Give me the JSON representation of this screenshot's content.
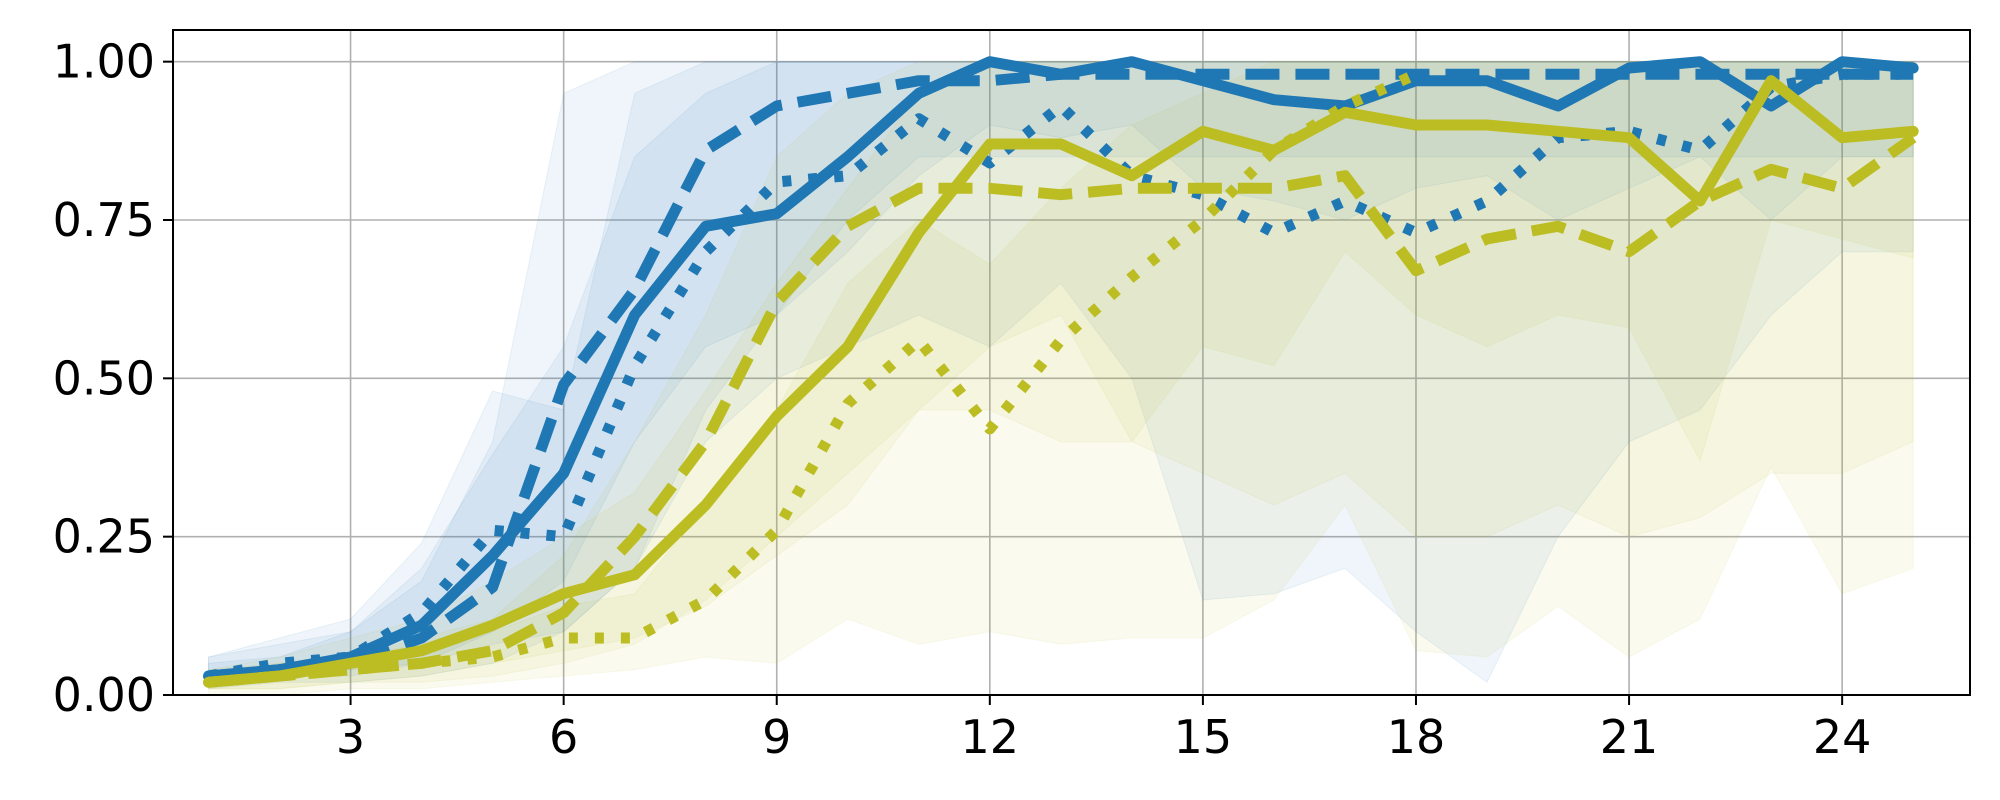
{
  "chart_data": {
    "type": "line",
    "title": "",
    "xlabel": "",
    "ylabel": "",
    "xlim": [
      0.5,
      25.8
    ],
    "ylim": [
      0,
      1.05
    ],
    "grid": true,
    "legend": "none",
    "x_ticks": [
      3,
      6,
      9,
      12,
      15,
      18,
      21,
      24
    ],
    "y_ticks": [
      0.0,
      0.25,
      0.5,
      0.75,
      1.0
    ],
    "x_tick_labels": [
      "3",
      "6",
      "9",
      "12",
      "15",
      "18",
      "21",
      "24"
    ],
    "y_tick_labels": [
      "0.00",
      "0.25",
      "0.50",
      "0.75",
      "1.00"
    ],
    "x": [
      1,
      2,
      3,
      4,
      5,
      6,
      7,
      8,
      9,
      10,
      11,
      12,
      13,
      14,
      15,
      16,
      17,
      18,
      19,
      20,
      21,
      22,
      23,
      24,
      25
    ],
    "colors": {
      "blue": "#1f77b4",
      "olive": "#bcbd22"
    },
    "series": [
      {
        "color": "#1f77b4",
        "style": "solid",
        "values": [
          0.03,
          0.04,
          0.06,
          0.11,
          0.22,
          0.35,
          0.6,
          0.74,
          0.76,
          0.85,
          0.95,
          1.0,
          0.98,
          1.0,
          0.97,
          0.94,
          0.93,
          0.97,
          0.97,
          0.93,
          0.99,
          1.0,
          0.93,
          1.0,
          0.99
        ],
        "band_lower": [
          0.02,
          0.03,
          0.04,
          0.05,
          0.1,
          0.18,
          0.4,
          0.55,
          0.6,
          0.7,
          0.82,
          0.9,
          0.88,
          0.9,
          0.8,
          0.78,
          0.75,
          0.8,
          0.82,
          0.75,
          0.8,
          0.85,
          0.75,
          0.85,
          0.85
        ],
        "band_upper": [
          0.05,
          0.06,
          0.1,
          0.2,
          0.38,
          0.55,
          0.85,
          0.95,
          1.0,
          1.0,
          1.0,
          1.0,
          1.0,
          1.0,
          1.0,
          1.0,
          1.0,
          1.0,
          1.0,
          1.0,
          1.0,
          1.0,
          1.0,
          1.0,
          1.0
        ]
      },
      {
        "color": "#1f77b4",
        "style": "dashed",
        "values": [
          0.03,
          0.04,
          0.05,
          0.09,
          0.17,
          0.49,
          0.64,
          0.86,
          0.93,
          0.95,
          0.97,
          0.97,
          0.98,
          0.98,
          0.98,
          0.98,
          0.98,
          0.98,
          0.98,
          0.98,
          0.98,
          0.98,
          0.98,
          0.98,
          0.98
        ],
        "band_lower": [
          0.01,
          0.02,
          0.02,
          0.03,
          0.05,
          0.1,
          0.2,
          0.45,
          0.6,
          0.75,
          0.85,
          0.85,
          0.85,
          0.85,
          0.85,
          0.85,
          0.85,
          0.85,
          0.85,
          0.85,
          0.85,
          0.85,
          0.85,
          0.85,
          0.85
        ],
        "band_upper": [
          0.06,
          0.08,
          0.1,
          0.18,
          0.4,
          0.95,
          1.0,
          1.0,
          1.0,
          1.0,
          1.0,
          1.0,
          1.0,
          1.0,
          1.0,
          1.0,
          1.0,
          1.0,
          1.0,
          1.0,
          1.0,
          1.0,
          1.0,
          1.0,
          1.0
        ]
      },
      {
        "color": "#1f77b4",
        "style": "dotted",
        "values": [
          0.03,
          0.05,
          0.06,
          0.13,
          0.26,
          0.25,
          0.52,
          0.7,
          0.81,
          0.82,
          0.91,
          0.84,
          0.93,
          0.82,
          0.79,
          0.73,
          0.78,
          0.73,
          0.78,
          0.88,
          0.89,
          0.86,
          0.96,
          0.98,
          0.98
        ],
        "band_lower": [
          0.02,
          0.03,
          0.03,
          0.05,
          0.08,
          0.1,
          0.2,
          0.4,
          0.5,
          0.55,
          0.6,
          0.55,
          0.65,
          0.5,
          0.15,
          0.16,
          0.2,
          0.1,
          0.02,
          0.25,
          0.4,
          0.45,
          0.6,
          0.7,
          0.7
        ],
        "band_upper": [
          0.06,
          0.09,
          0.12,
          0.24,
          0.48,
          0.45,
          0.95,
          1.0,
          1.0,
          1.0,
          1.0,
          1.0,
          1.0,
          1.0,
          1.0,
          1.0,
          1.0,
          1.0,
          1.0,
          1.0,
          1.0,
          1.0,
          1.0,
          1.0,
          1.0
        ]
      },
      {
        "color": "#bcbd22",
        "style": "solid",
        "values": [
          0.02,
          0.03,
          0.05,
          0.07,
          0.11,
          0.16,
          0.19,
          0.3,
          0.44,
          0.55,
          0.73,
          0.87,
          0.87,
          0.82,
          0.89,
          0.86,
          0.92,
          0.9,
          0.9,
          0.89,
          0.88,
          0.78,
          0.97,
          0.88,
          0.89
        ],
        "band_lower": [
          0.01,
          0.01,
          0.02,
          0.03,
          0.05,
          0.07,
          0.09,
          0.14,
          0.22,
          0.3,
          0.45,
          0.55,
          0.6,
          0.4,
          0.55,
          0.52,
          0.7,
          0.6,
          0.55,
          0.6,
          0.58,
          0.37,
          0.75,
          0.72,
          0.69
        ],
        "band_upper": [
          0.04,
          0.06,
          0.09,
          0.12,
          0.18,
          0.25,
          0.32,
          0.48,
          0.65,
          0.8,
          0.95,
          1.0,
          1.0,
          1.0,
          1.0,
          1.0,
          1.0,
          1.0,
          1.0,
          1.0,
          1.0,
          1.0,
          1.0,
          1.0,
          1.0
        ]
      },
      {
        "color": "#bcbd22",
        "style": "dashed",
        "values": [
          0.02,
          0.03,
          0.04,
          0.05,
          0.07,
          0.13,
          0.25,
          0.4,
          0.62,
          0.74,
          0.8,
          0.8,
          0.79,
          0.8,
          0.8,
          0.8,
          0.82,
          0.67,
          0.72,
          0.74,
          0.7,
          0.78,
          0.83,
          0.8,
          0.88
        ],
        "band_lower": [
          0.01,
          0.01,
          0.02,
          0.02,
          0.03,
          0.05,
          0.08,
          0.15,
          0.25,
          0.35,
          0.45,
          0.45,
          0.4,
          0.4,
          0.35,
          0.3,
          0.35,
          0.25,
          0.25,
          0.3,
          0.25,
          0.28,
          0.35,
          0.35,
          0.4
        ],
        "band_upper": [
          0.03,
          0.05,
          0.06,
          0.09,
          0.12,
          0.22,
          0.4,
          0.6,
          0.85,
          0.95,
          1.0,
          1.0,
          1.0,
          1.0,
          1.0,
          1.0,
          1.0,
          1.0,
          1.0,
          1.0,
          1.0,
          1.0,
          1.0,
          1.0,
          1.0
        ]
      },
      {
        "color": "#bcbd22",
        "style": "dotted",
        "values": [
          0.02,
          0.03,
          0.04,
          0.05,
          0.06,
          0.09,
          0.09,
          0.15,
          0.26,
          0.46,
          0.56,
          0.42,
          0.56,
          0.66,
          0.75,
          0.86,
          0.93,
          0.98,
          null,
          null,
          null,
          null,
          null,
          null,
          null
        ],
        "band_lower": [
          0.0,
          0.0,
          0.01,
          0.01,
          0.02,
          0.03,
          0.04,
          0.06,
          0.05,
          0.12,
          0.08,
          0.1,
          0.08,
          0.09,
          0.09,
          0.15,
          0.3,
          0.07,
          0.06,
          0.14,
          0.06,
          0.12,
          0.36,
          0.16,
          0.2
        ],
        "band_upper": [
          0.04,
          0.05,
          0.06,
          0.08,
          0.1,
          0.14,
          0.16,
          0.3,
          0.45,
          0.65,
          0.75,
          0.68,
          0.8,
          0.9,
          0.95,
          1.0,
          1.0,
          1.0,
          1.0,
          1.0,
          1.0,
          1.0,
          1.0,
          1.0,
          1.0
        ]
      }
    ]
  }
}
